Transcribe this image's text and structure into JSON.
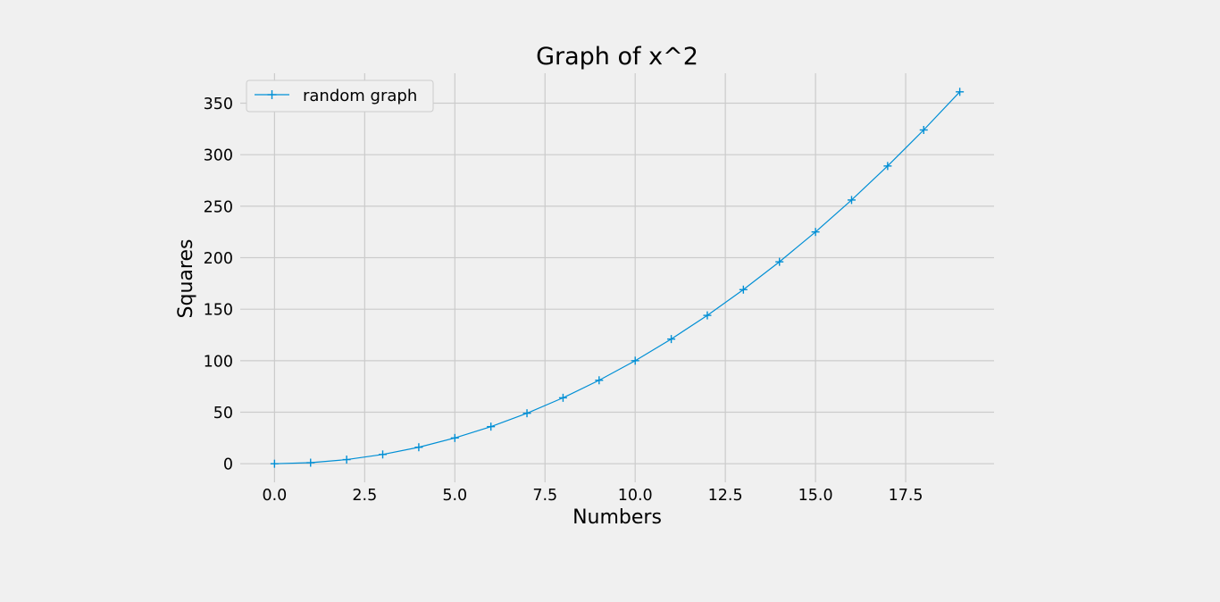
{
  "chart_data": {
    "type": "line",
    "title": "Graph of x^2",
    "xlabel": "Numbers",
    "ylabel": "Squares",
    "xlim": [
      -0.95,
      19.95
    ],
    "ylim": [
      -18.05,
      379.05
    ],
    "x_ticks": [
      0,
      2.5,
      5,
      7.5,
      10,
      12.5,
      15,
      17.5
    ],
    "x_tick_labels": [
      "0.0",
      "2.5",
      "5.0",
      "7.5",
      "10.0",
      "12.5",
      "15.0",
      "17.5"
    ],
    "y_ticks": [
      0,
      50,
      100,
      150,
      200,
      250,
      300,
      350
    ],
    "y_tick_labels": [
      "0",
      "50",
      "100",
      "150",
      "200",
      "250",
      "300",
      "350"
    ],
    "grid": true,
    "legend_position": "top-left",
    "series": [
      {
        "name": "random graph",
        "marker": "+",
        "color": "#008fd5",
        "x": [
          0,
          1,
          2,
          3,
          4,
          5,
          6,
          7,
          8,
          9,
          10,
          11,
          12,
          13,
          14,
          15,
          16,
          17,
          18,
          19
        ],
        "y": [
          0,
          1,
          4,
          9,
          16,
          25,
          36,
          49,
          64,
          81,
          100,
          121,
          144,
          169,
          196,
          225,
          256,
          289,
          324,
          361
        ]
      }
    ]
  },
  "colors": {
    "background": "#f0f0f0",
    "grid": "#cbcbcb",
    "series": "#008fd5"
  }
}
